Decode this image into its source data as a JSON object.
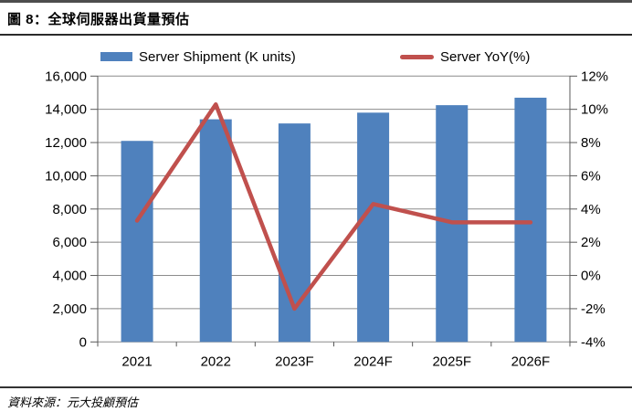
{
  "figure": {
    "title": "圖 8：全球伺服器出貨量預估",
    "source": "資料來源：元大投顧預估"
  },
  "chart_data": {
    "type": "combo-bar-line",
    "title": "全球伺服器出貨量預估 (Global server shipment forecast)",
    "categories": [
      "2021",
      "2022",
      "2023F",
      "2024F",
      "2025F",
      "2026F"
    ],
    "series": [
      {
        "name": "Server Shipment (K units)",
        "type": "bar",
        "axis": "left",
        "color": "#4F81BD",
        "values": [
          12100,
          13400,
          13150,
          13800,
          14250,
          14700
        ]
      },
      {
        "name": "Server YoY(%)",
        "type": "line",
        "axis": "right",
        "color": "#C0504D",
        "values": [
          3.3,
          10.3,
          -2.0,
          4.3,
          3.2,
          3.2
        ]
      }
    ],
    "left_axis": {
      "min": 0,
      "max": 16000,
      "step": 2000,
      "tick_labels": [
        "16,000",
        "14,000",
        "12,000",
        "10,000",
        "8,000",
        "6,000",
        "4,000",
        "2,000",
        "0"
      ]
    },
    "right_axis": {
      "min": -4,
      "max": 12,
      "step": 2,
      "tick_labels": [
        "12%",
        "10%",
        "8%",
        "6%",
        "4%",
        "2%",
        "0%",
        "-2%",
        "-4%"
      ]
    },
    "grid": true,
    "legend_position": "top"
  },
  "colors": {
    "bar": "#4F81BD",
    "line": "#C0504D",
    "grid": "#8C8C8C",
    "axis": "#595959",
    "text": "#000000",
    "rule": "#333333",
    "top_rule": "#4D4D4D"
  }
}
